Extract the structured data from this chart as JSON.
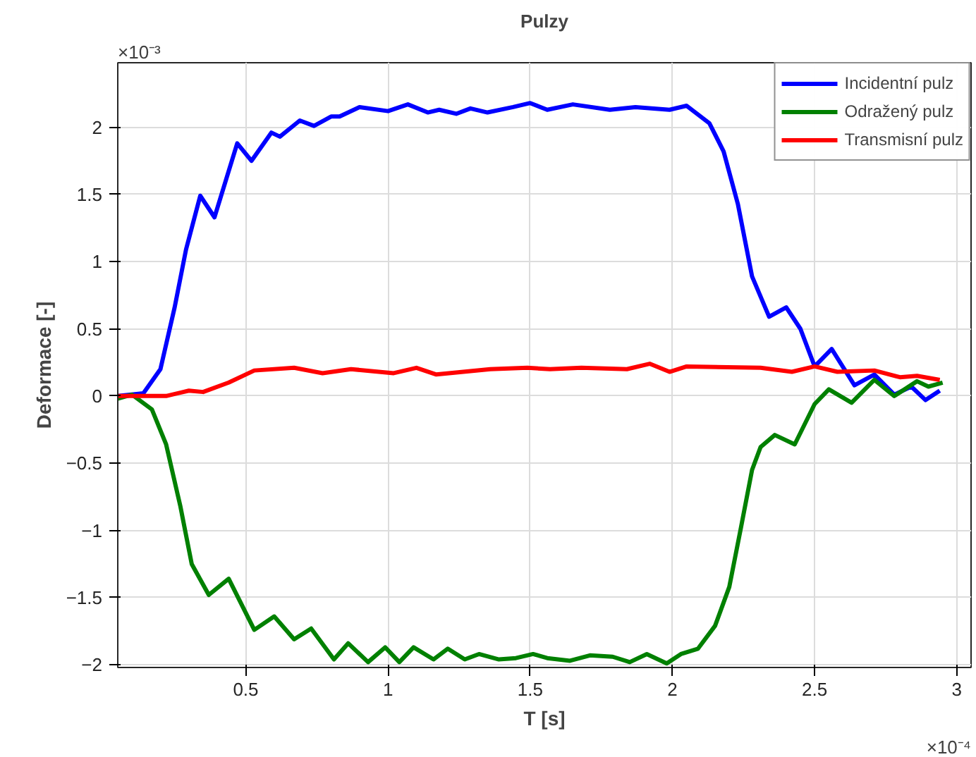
{
  "chart_data": {
    "type": "line",
    "title": "Pulzy",
    "xlabel": "T [s]",
    "ylabel": "Deformace [-]",
    "annotations": [
      "×10⁻³",
      "×10⁻⁴"
    ],
    "xlim": [
      0.05,
      3.05
    ],
    "ylim": [
      -2.02,
      2.48
    ],
    "xticks": [
      0.5,
      1,
      1.5,
      2,
      2.5,
      3
    ],
    "yticks": [
      -2,
      -1.5,
      -1,
      -0.5,
      0,
      0.5,
      1,
      1.5,
      2
    ],
    "grid": true,
    "legend": "top right",
    "line_style": "solid",
    "series": [
      {
        "name": "Incidentní pulz",
        "color": "#0000ff",
        "x": [
          0.05,
          0.14,
          0.2,
          0.25,
          0.29,
          0.34,
          0.39,
          0.47,
          0.52,
          0.59,
          0.62,
          0.69,
          0.74,
          0.8,
          0.83,
          0.9,
          1.0,
          1.07,
          1.14,
          1.18,
          1.24,
          1.29,
          1.35,
          1.44,
          1.5,
          1.56,
          1.65,
          1.78,
          1.87,
          1.99,
          2.05,
          2.13,
          2.18,
          2.23,
          2.28,
          2.34,
          2.4,
          2.45,
          2.5,
          2.56,
          2.64,
          2.71,
          2.78,
          2.84,
          2.89,
          2.94
        ],
        "values": [
          0,
          0.02,
          0.2,
          0.66,
          1.09,
          1.49,
          1.33,
          1.88,
          1.75,
          1.96,
          1.93,
          2.05,
          2.01,
          2.08,
          2.08,
          2.15,
          2.12,
          2.17,
          2.11,
          2.13,
          2.1,
          2.14,
          2.11,
          2.15,
          2.18,
          2.13,
          2.17,
          2.13,
          2.15,
          2.13,
          2.16,
          2.03,
          1.82,
          1.43,
          0.89,
          0.59,
          0.66,
          0.5,
          0.22,
          0.35,
          0.08,
          0.16,
          0.01,
          0.07,
          -0.03,
          0.04
        ]
      },
      {
        "name": "Odražený pulz",
        "color": "#008000",
        "x": [
          0.05,
          0.1,
          0.17,
          0.22,
          0.27,
          0.31,
          0.37,
          0.44,
          0.53,
          0.6,
          0.67,
          0.73,
          0.81,
          0.86,
          0.93,
          0.99,
          1.04,
          1.09,
          1.16,
          1.21,
          1.27,
          1.32,
          1.39,
          1.45,
          1.51,
          1.56,
          1.64,
          1.71,
          1.79,
          1.85,
          1.91,
          1.98,
          2.03,
          2.09,
          2.15,
          2.2,
          2.24,
          2.28,
          2.31,
          2.36,
          2.43,
          2.5,
          2.55,
          2.63,
          2.71,
          2.78,
          2.86,
          2.9,
          2.95
        ],
        "values": [
          -0.02,
          0.01,
          -0.1,
          -0.36,
          -0.82,
          -1.25,
          -1.48,
          -1.36,
          -1.74,
          -1.64,
          -1.81,
          -1.73,
          -1.96,
          -1.84,
          -1.98,
          -1.87,
          -1.98,
          -1.87,
          -1.96,
          -1.88,
          -1.96,
          -1.92,
          -1.96,
          -1.95,
          -1.92,
          -1.95,
          -1.97,
          -1.93,
          -1.94,
          -1.98,
          -1.92,
          -1.99,
          -1.92,
          -1.88,
          -1.71,
          -1.42,
          -0.99,
          -0.55,
          -0.38,
          -0.29,
          -0.36,
          -0.06,
          0.05,
          -0.05,
          0.12,
          0.0,
          0.11,
          0.07,
          0.1
        ]
      },
      {
        "name": "Transmisní pulz",
        "color": "#ff0000",
        "x": [
          0.05,
          0.14,
          0.22,
          0.3,
          0.35,
          0.44,
          0.53,
          0.67,
          0.77,
          0.87,
          1.02,
          1.1,
          1.17,
          1.36,
          1.49,
          1.57,
          1.68,
          1.84,
          1.92,
          1.99,
          2.05,
          2.31,
          2.42,
          2.5,
          2.58,
          2.71,
          2.8,
          2.86,
          2.94
        ],
        "values": [
          0,
          0,
          0,
          0.04,
          0.03,
          0.1,
          0.19,
          0.21,
          0.17,
          0.2,
          0.17,
          0.21,
          0.16,
          0.2,
          0.21,
          0.2,
          0.21,
          0.2,
          0.24,
          0.18,
          0.22,
          0.21,
          0.18,
          0.22,
          0.18,
          0.19,
          0.14,
          0.15,
          0.12
        ]
      }
    ]
  }
}
